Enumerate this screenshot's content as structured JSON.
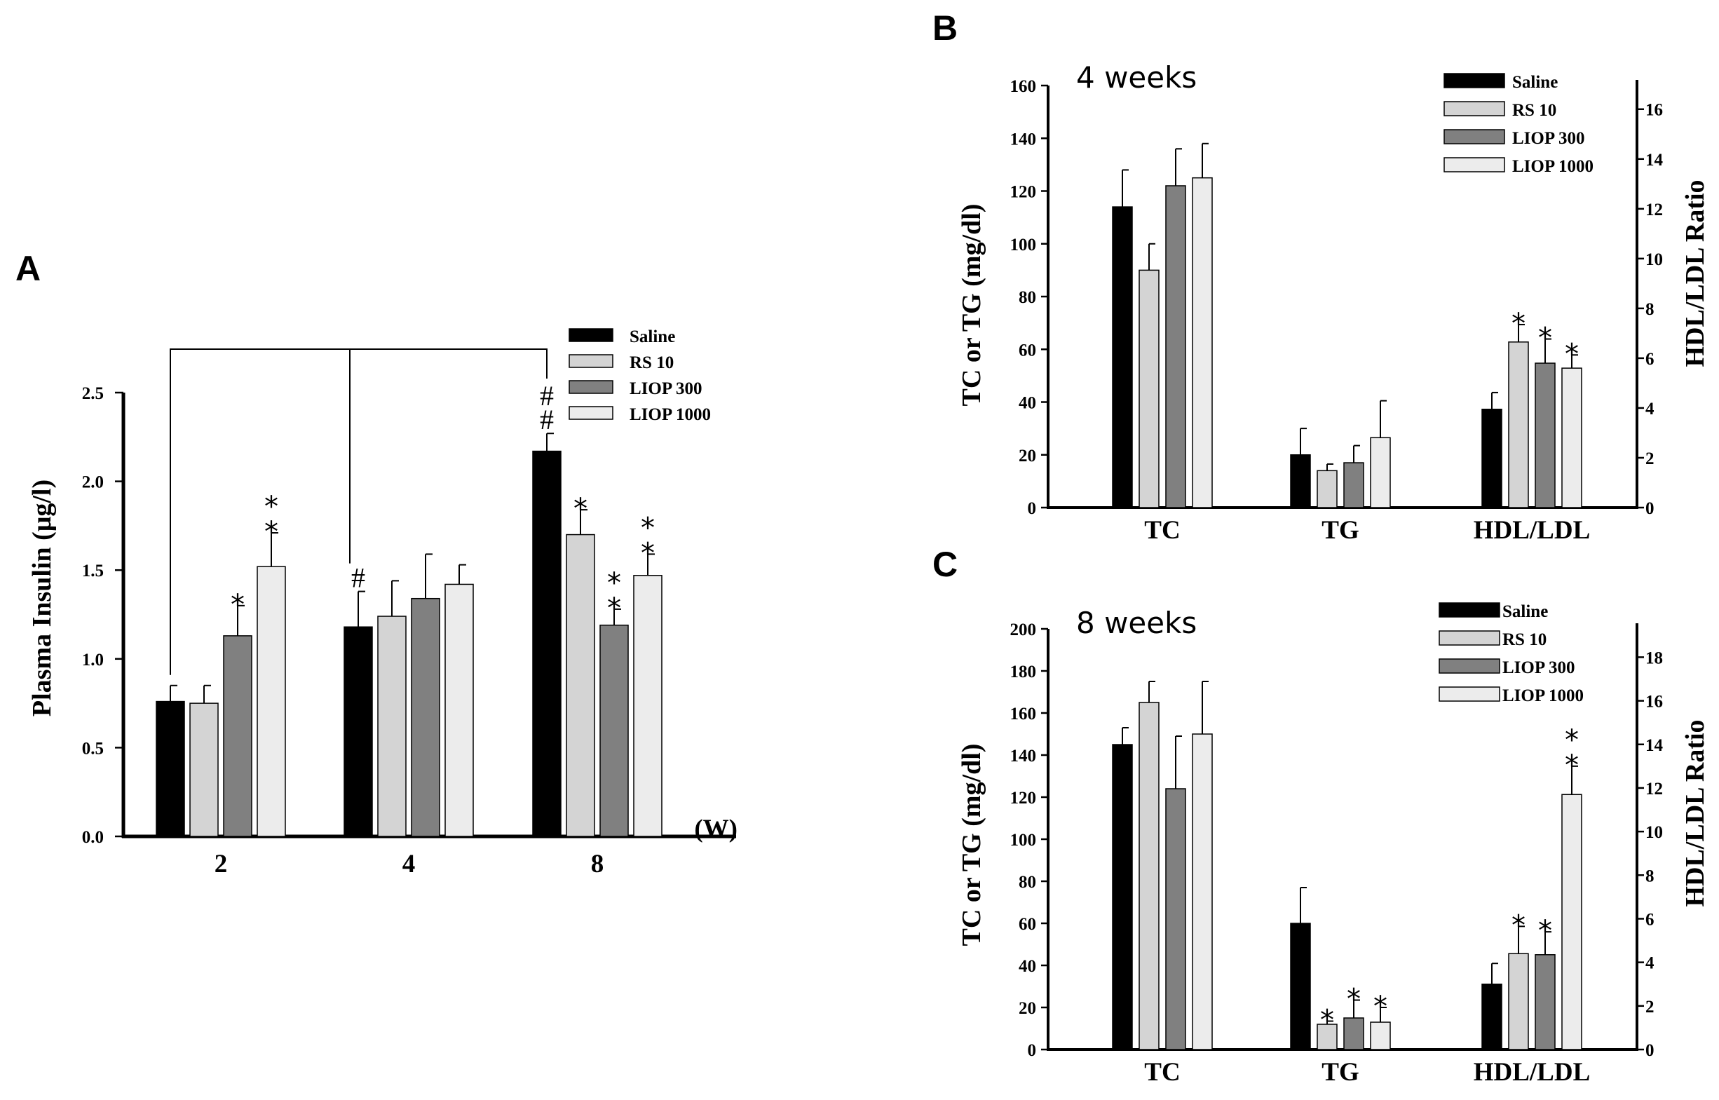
{
  "colors": {
    "Saline": "#000000",
    "RS 10": "#d4d4d4",
    "LIOP 300": "#808080",
    "LIOP 1000": "#ececec"
  },
  "panels": {
    "A": {
      "letter": "A",
      "x_unit_label": "(W)"
    },
    "B": {
      "letter": "B",
      "subtitle": "4 weeks"
    },
    "C": {
      "letter": "C",
      "subtitle": "8 weeks"
    }
  },
  "chart_data": [
    {
      "id": "A",
      "type": "bar",
      "ylabel": "Plasma Insulin (μg/l)",
      "xlabel": "(W)",
      "categories": [
        "2",
        "4",
        "8"
      ],
      "ylim": [
        0,
        2.5
      ],
      "yticks": [
        0.0,
        0.5,
        1.0,
        1.5,
        2.0,
        2.5
      ],
      "ytick_labels": [
        "0.0",
        "0.5",
        "1.0",
        "1.5",
        "2.0",
        "2.5"
      ],
      "series": [
        {
          "name": "Saline",
          "values": [
            0.76,
            1.18,
            2.17
          ],
          "errors": [
            0.09,
            0.2,
            0.1
          ]
        },
        {
          "name": "RS 10",
          "values": [
            0.75,
            1.24,
            1.7
          ],
          "errors": [
            0.1,
            0.2,
            0.14
          ]
        },
        {
          "name": "LIOP 300",
          "values": [
            1.13,
            1.34,
            1.19
          ],
          "errors": [
            0.17,
            0.25,
            0.09
          ]
        },
        {
          "name": "LIOP 1000",
          "values": [
            1.52,
            1.42,
            1.47
          ],
          "errors": [
            0.19,
            0.11,
            0.12
          ]
        }
      ],
      "annotations": [
        {
          "text": "*",
          "series": 2,
          "category": 0,
          "stack": 1
        },
        {
          "text": "*",
          "series": 3,
          "category": 0,
          "stack": 2
        },
        {
          "text": "#",
          "series": 0,
          "category": 1,
          "stack": 1
        },
        {
          "text": "#",
          "series": 0,
          "category": 2,
          "stack": 2
        },
        {
          "text": "*",
          "series": 1,
          "category": 2,
          "stack": 1
        },
        {
          "text": "*",
          "series": 2,
          "category": 2,
          "stack": 2
        },
        {
          "text": "*",
          "series": 3,
          "category": 2,
          "stack": 2
        }
      ],
      "legend": [
        "Saline",
        "RS 10",
        "LIOP 300",
        "LIOP 1000"
      ],
      "legend_position": "top-right",
      "comparison_bracket": "week 8 Saline vs week 2 and week 4 Saline"
    },
    {
      "id": "B",
      "type": "bar",
      "title": "4 weeks",
      "ylabel": "TC or TG (mg/dl)",
      "y2label": "HDL/LDL Ratio",
      "categories": [
        "TC",
        "TG",
        "HDL/LDL"
      ],
      "ylim": [
        0,
        160
      ],
      "yticks": [
        0,
        20,
        40,
        60,
        80,
        100,
        120,
        140,
        160
      ],
      "y2lim": [
        0,
        16.95
      ],
      "y2ticks": [
        0,
        2,
        4,
        6,
        8,
        10,
        12,
        14,
        16
      ],
      "series": [
        {
          "name": "Saline",
          "values": [
            114,
            20,
            3.95
          ],
          "errors": [
            14,
            10,
            0.67
          ]
        },
        {
          "name": "RS 10",
          "values": [
            90,
            14,
            6.65
          ],
          "errors": [
            10,
            2.5,
            0.7
          ]
        },
        {
          "name": "LIOP 300",
          "values": [
            122,
            17,
            5.8
          ],
          "errors": [
            14,
            6.5,
            0.97
          ]
        },
        {
          "name": "LIOP 1000",
          "values": [
            125,
            26.5,
            5.6
          ],
          "errors": [
            13,
            14,
            0.53
          ]
        }
      ],
      "right_axis_category": "HDL/LDL",
      "annotations": [
        {
          "text": "*",
          "series": 1,
          "category": 2,
          "stack": 1
        },
        {
          "text": "*",
          "series": 2,
          "category": 2,
          "stack": 1
        },
        {
          "text": "*",
          "series": 3,
          "category": 2,
          "stack": 1
        }
      ],
      "legend": [
        "Saline",
        "RS 10",
        "LIOP 300",
        "LIOP 1000"
      ],
      "legend_position": "top-right"
    },
    {
      "id": "C",
      "type": "bar",
      "title": "8 weeks",
      "ylabel": "TC or TG (mg/dl)",
      "y2label": "HDL/LDL Ratio",
      "categories": [
        "TC",
        "TG",
        "HDL/LDL"
      ],
      "ylim": [
        0,
        200
      ],
      "yticks": [
        0,
        20,
        40,
        60,
        80,
        100,
        120,
        140,
        160,
        180,
        200
      ],
      "y2lim": [
        0,
        19.3
      ],
      "y2ticks": [
        0,
        2,
        4,
        6,
        8,
        10,
        12,
        14,
        16,
        18
      ],
      "series": [
        {
          "name": "Saline",
          "values": [
            145,
            60,
            3.0
          ],
          "errors": [
            8,
            17,
            0.95
          ]
        },
        {
          "name": "RS 10",
          "values": [
            165,
            12,
            4.4
          ],
          "errors": [
            10,
            1.5,
            1.25
          ]
        },
        {
          "name": "LIOP 300",
          "values": [
            124,
            15,
            4.35
          ],
          "errors": [
            25,
            8.5,
            1.05
          ]
        },
        {
          "name": "LIOP 1000",
          "values": [
            150,
            13,
            11.7
          ],
          "errors": [
            25,
            7,
            1.3
          ]
        }
      ],
      "right_axis_category": "HDL/LDL",
      "annotations": [
        {
          "text": "*",
          "series": 1,
          "category": 1,
          "stack": 1
        },
        {
          "text": "*",
          "series": 2,
          "category": 1,
          "stack": 1
        },
        {
          "text": "*",
          "series": 3,
          "category": 1,
          "stack": 1
        },
        {
          "text": "*",
          "series": 1,
          "category": 2,
          "stack": 1
        },
        {
          "text": "*",
          "series": 2,
          "category": 2,
          "stack": 1
        },
        {
          "text": "*",
          "series": 3,
          "category": 2,
          "stack": 2
        }
      ],
      "legend": [
        "Saline",
        "RS 10",
        "LIOP 300",
        "LIOP 1000"
      ],
      "legend_position": "top-right"
    }
  ]
}
